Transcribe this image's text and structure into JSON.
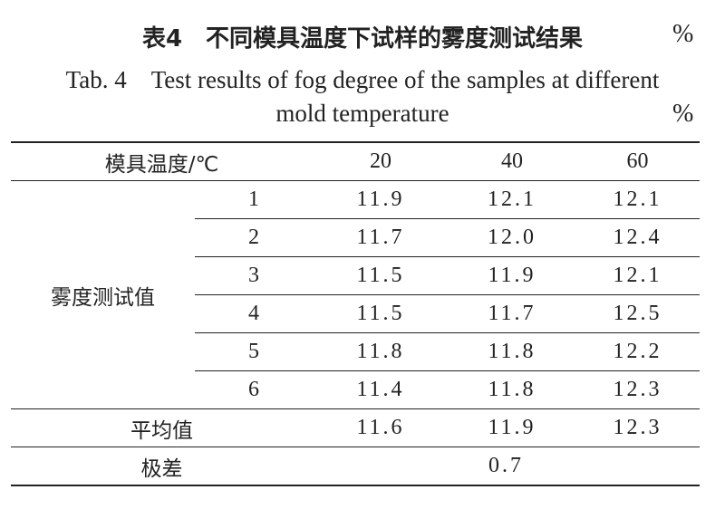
{
  "title": {
    "zh": "表4　不同模具温度下试样的雾度测试结果",
    "unit_zh": "%",
    "en_line1": "Tab. 4　Test results of fog degree of the samples at different",
    "en_line2": "mold temperature",
    "unit_en": "%"
  },
  "table": {
    "header": [
      "模具温度/℃",
      "20",
      "40",
      "60"
    ],
    "group_label": "雾度测试值",
    "rows": [
      [
        "1",
        "11.9",
        "12.1",
        "12.1"
      ],
      [
        "2",
        "11.7",
        "12.0",
        "12.4"
      ],
      [
        "3",
        "11.5",
        "11.9",
        "12.1"
      ],
      [
        "4",
        "11.5",
        "11.7",
        "12.5"
      ],
      [
        "5",
        "11.8",
        "11.8",
        "12.2"
      ],
      [
        "6",
        "11.4",
        "11.8",
        "12.3"
      ]
    ],
    "average": [
      "平均值",
      "11.6",
      "11.9",
      "12.3"
    ],
    "range": [
      "极差",
      "0.7"
    ]
  }
}
